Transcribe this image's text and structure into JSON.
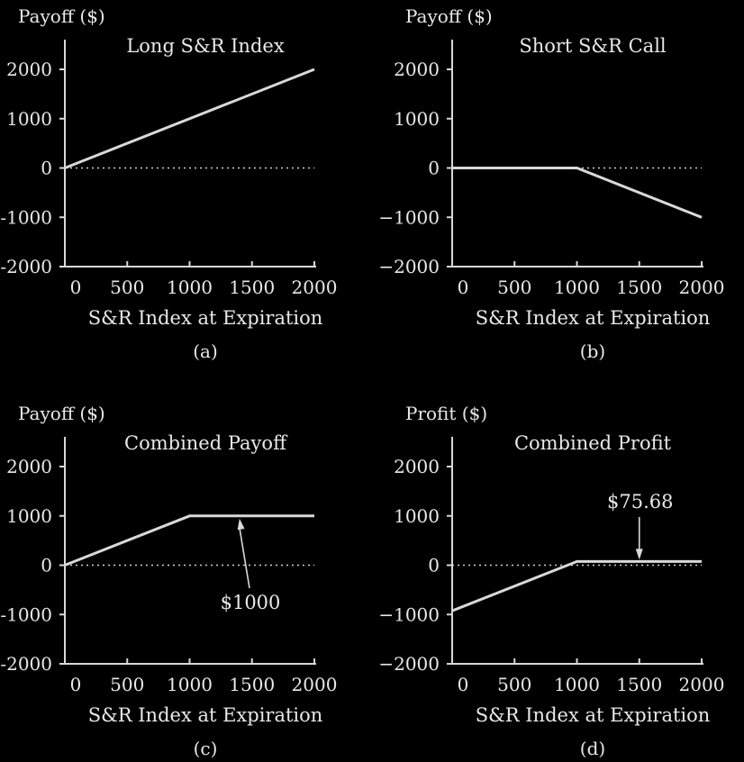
{
  "chart_data": [
    {
      "type": "line",
      "panel_label": "(a)",
      "title": "Long S&R Index",
      "ylabel": "Payoff ($)",
      "xlabel": "S&R Index at Expiration",
      "xlim": [
        0,
        2000
      ],
      "ylim": [
        -2000,
        2000
      ],
      "x_ticks": [
        "0",
        "500",
        "1000",
        "1500",
        "2000"
      ],
      "y_ticks": [
        "2000",
        "1000",
        "0",
        "-1000",
        "-2000"
      ],
      "zero_line": true,
      "series": [
        {
          "x": [
            0,
            2000
          ],
          "y": [
            0,
            2000
          ]
        }
      ]
    },
    {
      "type": "line",
      "panel_label": "(b)",
      "title": "Short S&R Call",
      "ylabel": "Payoff ($)",
      "xlabel": "S&R Index at Expiration",
      "xlim": [
        0,
        2000
      ],
      "ylim": [
        -2000,
        2000
      ],
      "x_ticks": [
        "0",
        "500",
        "1000",
        "1500",
        "2000"
      ],
      "y_ticks": [
        "2000",
        "1000",
        "0",
        "−1000",
        "−2000"
      ],
      "zero_line": true,
      "series": [
        {
          "x": [
            0,
            1000,
            2000
          ],
          "y": [
            0,
            0,
            -1000
          ]
        }
      ]
    },
    {
      "type": "line",
      "panel_label": "(c)",
      "title": "Combined Payoff",
      "ylabel": "Payoff ($)",
      "xlabel": "S&R Index at Expiration",
      "xlim": [
        0,
        2000
      ],
      "ylim": [
        -2000,
        2000
      ],
      "x_ticks": [
        "0",
        "500",
        "1000",
        "1500",
        "2000"
      ],
      "y_ticks": [
        "2000",
        "1000",
        "0",
        "-1000",
        "-2000"
      ],
      "zero_line": true,
      "series": [
        {
          "x": [
            0,
            1000,
            2000
          ],
          "y": [
            0,
            1000,
            1000
          ]
        }
      ],
      "annotation": {
        "text": "$1000",
        "x": 1400,
        "y": 1000
      }
    },
    {
      "type": "line",
      "panel_label": "(d)",
      "title": "Combined Profit",
      "ylabel": "Profit ($)",
      "xlabel": "S&R Index at Expiration",
      "xlim": [
        0,
        2000
      ],
      "ylim": [
        -2000,
        2000
      ],
      "x_ticks": [
        "0",
        "500",
        "1000",
        "1500",
        "2000"
      ],
      "y_ticks": [
        "2000",
        "1000",
        "0",
        "−1000",
        "−2000"
      ],
      "zero_line": true,
      "series": [
        {
          "x": [
            0,
            1000,
            2000
          ],
          "y": [
            -924.32,
            75.68,
            75.68
          ]
        }
      ],
      "annotation": {
        "text": "$75.68",
        "x": 1500,
        "y": 75.68
      }
    }
  ]
}
